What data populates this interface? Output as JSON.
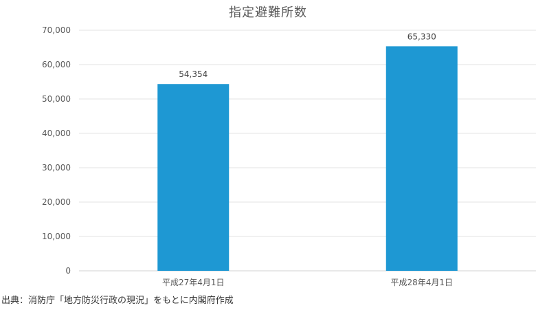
{
  "chart_data": {
    "type": "bar",
    "title": "指定避難所数",
    "categories": [
      "平成27年4月1日",
      "平成28年4月1日"
    ],
    "values": [
      54354,
      65330
    ],
    "data_labels": [
      "54,354",
      "65,330"
    ],
    "ylim": [
      0,
      70000
    ],
    "yticks": [
      0,
      10000,
      20000,
      30000,
      40000,
      50000,
      60000,
      70000
    ],
    "ytick_labels": [
      "0",
      "10,000",
      "20,000",
      "30,000",
      "40,000",
      "50,000",
      "60,000",
      "70,000"
    ],
    "xlabel": "",
    "ylabel": "",
    "grid": true,
    "legend": false,
    "bar_color": "#1e98d3"
  },
  "source_note": "出典：消防庁「地方防災行政の現況」をもとに内閣府作成"
}
